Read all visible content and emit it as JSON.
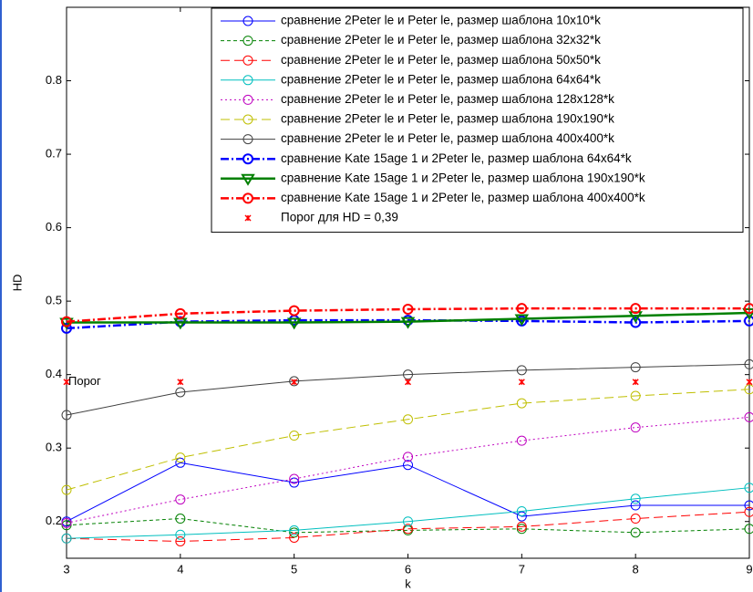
{
  "chart_data": {
    "type": "line",
    "x_label": "k",
    "y_label": "HD",
    "x": [
      3,
      4,
      5,
      6,
      7,
      8,
      9
    ],
    "xlim": [
      3,
      9
    ],
    "xticks": [
      3,
      4,
      5,
      6,
      7,
      8,
      9
    ],
    "ylim": [
      0.15,
      0.9
    ],
    "yticks": [
      0.2,
      0.3,
      0.4,
      0.5,
      0.6,
      0.7,
      0.8
    ],
    "annotation": {
      "text": "Порог",
      "x": 3,
      "y": 0.39
    },
    "series": [
      {
        "name": "сравнение 2Peter le и Peter le, размер шаблона 10x10*k",
        "color": "#0000ff",
        "dash": "solid",
        "marker": "o",
        "width": 1,
        "values": [
          0.2,
          0.28,
          0.253,
          0.277,
          0.207,
          0.222,
          0.222
        ]
      },
      {
        "name": "сравнение 2Peter le и Peter le, размер шаблона 32x32*k",
        "color": "#008000",
        "dash": "dashed",
        "marker": "o",
        "width": 1,
        "values": [
          0.195,
          0.204,
          0.185,
          0.188,
          0.19,
          0.185,
          0.19
        ]
      },
      {
        "name": "сравнение 2Peter le и Peter le, размер шаблона 50x50*k",
        "color": "#ff0000",
        "dash": "longdash",
        "marker": "o",
        "width": 1,
        "values": [
          0.177,
          0.173,
          0.178,
          0.19,
          0.193,
          0.204,
          0.213
        ]
      },
      {
        "name": "сравнение 2Peter le и Peter le, размер шаблона 64x64*k",
        "color": "#00bfbf",
        "dash": "solid",
        "marker": "o",
        "width": 1,
        "values": [
          0.177,
          0.182,
          0.188,
          0.2,
          0.214,
          0.231,
          0.246
        ]
      },
      {
        "name": "сравнение 2Peter le и Peter le, размер шаблона 128x128*k",
        "color": "#bf00bf",
        "dash": "dotted",
        "marker": "o",
        "width": 1,
        "values": [
          0.198,
          0.23,
          0.258,
          0.288,
          0.31,
          0.328,
          0.342
        ]
      },
      {
        "name": "сравнение 2Peter le и Peter le, размер шаблона 190x190*k",
        "color": "#bfbf00",
        "dash": "longdash",
        "marker": "o",
        "width": 1,
        "values": [
          0.243,
          0.287,
          0.317,
          0.339,
          0.361,
          0.371,
          0.38
        ]
      },
      {
        "name": "сравнение 2Peter le и Peter le, размер шаблона 400x400*k",
        "color": "#404040",
        "dash": "solid",
        "marker": "o",
        "width": 1,
        "values": [
          0.345,
          0.376,
          0.391,
          0.4,
          0.406,
          0.41,
          0.414
        ]
      },
      {
        "name": "сравнение Kate 15age 1 и 2Peter le, размер шаблона 64x64*k",
        "color": "#0000ff",
        "dash": "dashdot",
        "marker": "o",
        "width": 2.5,
        "values": [
          0.463,
          0.472,
          0.474,
          0.474,
          0.473,
          0.471,
          0.473
        ]
      },
      {
        "name": "сравнение Kate 15age 1 и 2Peter le, размер шаблона 190x190*k",
        "color": "#008000",
        "dash": "solid",
        "marker": "v",
        "width": 2.5,
        "values": [
          0.471,
          0.471,
          0.471,
          0.472,
          0.476,
          0.48,
          0.484
        ]
      },
      {
        "name": "сравнение Kate 15age 1 и 2Peter le, размер шаблона 400x400*k",
        "color": "#ff0000",
        "dash": "dashdot",
        "marker": "o",
        "width": 2.5,
        "values": [
          0.472,
          0.483,
          0.487,
          0.489,
          0.49,
          0.49,
          0.49
        ]
      },
      {
        "name": "Порог для HD = 0,39",
        "color": "#ff0000",
        "dash": "none",
        "marker": "*",
        "width": 1,
        "values": [
          0.39,
          0.39,
          0.39,
          0.39,
          0.39,
          0.39,
          0.39
        ]
      }
    ]
  }
}
